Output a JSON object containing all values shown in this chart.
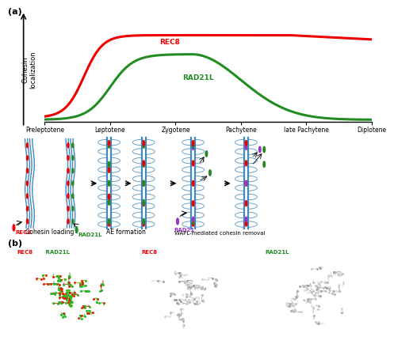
{
  "title_a": "(a)",
  "title_b": "(b)",
  "rec8_color": "#ee0000",
  "rad21l_color": "#228B22",
  "rad21_color": "#9933cc",
  "blue_color": "#4488bb",
  "bg_color": "#ffffff",
  "stages": [
    "Preleptotene",
    "Leptotene",
    "Zygotene",
    "Pachytene",
    "late Pachytene",
    "Diplotene"
  ],
  "ylabel": "Cohesin\nlocalization",
  "label_cohesin_loading": "Cohesin loading",
  "label_ae": "AE formation",
  "label_wapl": "WAPL-mediated cohesin removal",
  "label_rec8": "REC8",
  "label_rad21l": "RAD21L",
  "label_rad21": "RAD21"
}
